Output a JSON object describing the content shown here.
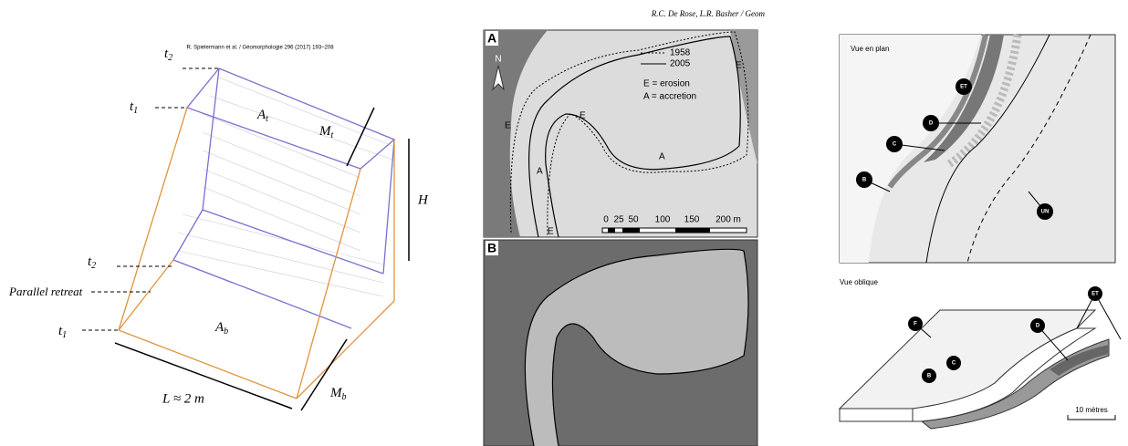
{
  "figure_left": {
    "header": "R. Spielermann et al. / Géomorphologie 296 (2017) 193–208",
    "t2_top": {
      "base": "t",
      "sub": "2"
    },
    "t1_top": {
      "base": "t",
      "sub": "1"
    },
    "a_top": {
      "base": "A",
      "sub": "t"
    },
    "m_top": {
      "base": "M",
      "sub": "t"
    },
    "height": "H",
    "t2_bottom": {
      "base": "t",
      "sub": "2"
    },
    "parallel_retreat": "Parallel retreat",
    "t1_bottom": {
      "base": "t",
      "sub": "1"
    },
    "a_bottom": {
      "base": "A",
      "sub": "b"
    },
    "length": "L ≈ 2 m",
    "m_bottom": {
      "base": "M",
      "sub": "b"
    }
  },
  "figure_middle": {
    "header": "R.C. De Rose, L.R. Basher / Geom",
    "panel_a": {
      "label": "A",
      "legend": [
        "1958",
        "2005"
      ],
      "key": [
        "E = erosion",
        "A = accretion"
      ],
      "north": "N",
      "site_labels": [
        "E",
        "E",
        "E",
        "A",
        "A",
        "E"
      ],
      "scale_ticks": [
        "0",
        "25",
        "50",
        "100",
        "150",
        "200 m"
      ]
    },
    "panel_b": {
      "label": "B"
    }
  },
  "figure_right": {
    "plan": {
      "title": "Vue en plan",
      "markers": [
        "ET",
        "D",
        "C",
        "B",
        "UN"
      ]
    },
    "oblique": {
      "title": "Vue oblique",
      "markers": [
        "F",
        "D",
        "C",
        "B",
        "ET"
      ],
      "scale": "10 mètres"
    }
  }
}
